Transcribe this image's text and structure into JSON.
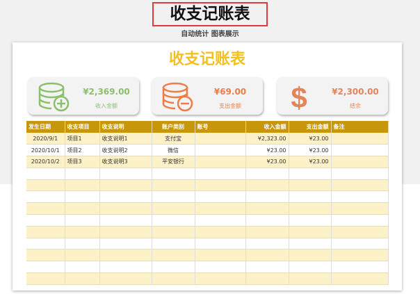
{
  "header": {
    "title": "收支记账表",
    "subtitle": "自动统计  图表展示"
  },
  "sheet": {
    "title": "收支记账表",
    "stats": [
      {
        "value": "¥2,369.00",
        "label": "收入金额",
        "icon": "coins-plus-icon",
        "color": "#8cbf6a"
      },
      {
        "value": "¥69.00",
        "label": "支出金额",
        "icon": "coins-minus-icon",
        "color": "#ee7d45"
      },
      {
        "value": "¥2,300.00",
        "label": "结余",
        "icon": "dollar-icon",
        "color": "#e0865a"
      }
    ],
    "columns": [
      "发生日期",
      "收支项目",
      "收支说明",
      "账户类别",
      "账号",
      "收入金额",
      "支出金额",
      "备注"
    ],
    "rows": [
      [
        "2020/9/1",
        "项目1",
        "收支说明1",
        "支付宝",
        "",
        "¥2,323.00",
        "¥23.00",
        ""
      ],
      [
        "2020/10/1",
        "项目2",
        "收支说明2",
        "微信",
        "",
        "¥23.00",
        "¥23.00",
        ""
      ],
      [
        "2020/10/2",
        "项目3",
        "收支说明3",
        "平安银行",
        "",
        "¥23.00",
        "¥23.00",
        ""
      ]
    ],
    "header_color": "#c7960a",
    "stripe_color": "#fdf1c8"
  }
}
